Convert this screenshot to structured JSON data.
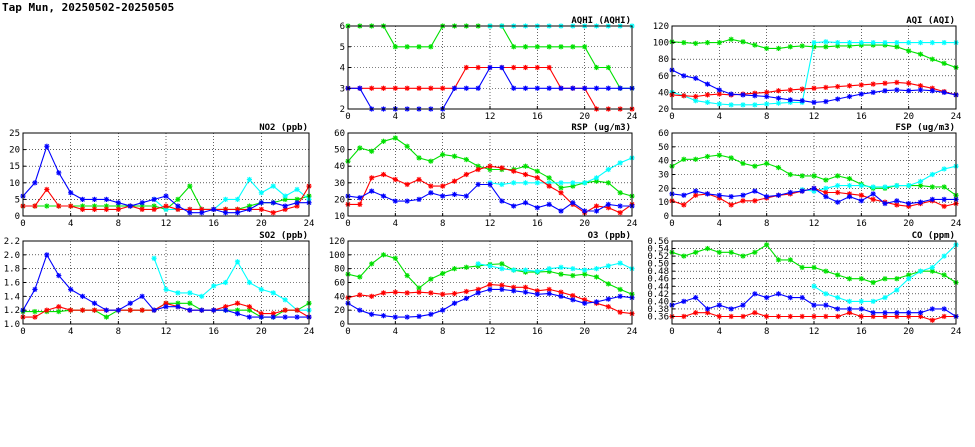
{
  "page": {
    "title": "Tap Mun, 20250502-20250505"
  },
  "chart_data": [
    {
      "type": "line",
      "title": "AQHI (AQHI)",
      "x_ticks": [
        0,
        4,
        8,
        12,
        16,
        20,
        24
      ],
      "xlim": [
        0,
        24
      ],
      "ylim": [
        2,
        6
      ],
      "y_ticks": [
        2,
        3,
        4,
        5,
        6
      ],
      "grid": true,
      "colors": [
        "#00e000",
        "#00ffff",
        "#ff0000",
        "#0000ff"
      ],
      "series": [
        {
          "values": [
            6,
            6,
            6,
            6,
            5,
            5,
            5,
            5,
            6,
            6,
            6,
            6,
            6,
            6,
            5,
            5,
            5,
            5,
            5,
            5,
            5,
            4,
            4,
            3,
            3
          ]
        },
        {
          "values": [
            null,
            null,
            null,
            null,
            null,
            null,
            null,
            null,
            null,
            null,
            null,
            null,
            6,
            6,
            6,
            6,
            6,
            6,
            6,
            6,
            6,
            6,
            6,
            6,
            6
          ]
        },
        {
          "values": [
            3,
            3,
            3,
            3,
            3,
            3,
            3,
            3,
            3,
            3,
            4,
            4,
            4,
            4,
            4,
            4,
            4,
            4,
            3,
            3,
            3,
            2,
            2,
            2,
            2
          ]
        },
        {
          "values": [
            3,
            3,
            2,
            2,
            2,
            2,
            2,
            2,
            2,
            3,
            3,
            3,
            4,
            4,
            3,
            3,
            3,
            3,
            3,
            3,
            3,
            3,
            3,
            3,
            3
          ]
        }
      ]
    },
    {
      "type": "line",
      "title": "AQI (AQI)",
      "x_ticks": [
        0,
        4,
        8,
        12,
        16,
        20,
        24
      ],
      "xlim": [
        0,
        24
      ],
      "ylim": [
        20,
        120
      ],
      "y_ticks": [
        20,
        40,
        60,
        80,
        100,
        120
      ],
      "grid": true,
      "colors": [
        "#00e000",
        "#00ffff",
        "#ff0000",
        "#0000ff"
      ],
      "series": [
        {
          "values": [
            101,
            100,
            99,
            100,
            100,
            104,
            101,
            97,
            93,
            93,
            95,
            96,
            95,
            95,
            96,
            96,
            97,
            97,
            97,
            95,
            90,
            86,
            80,
            75,
            70
          ]
        },
        {
          "values": [
            40,
            36,
            30,
            28,
            26,
            25,
            25,
            25,
            26,
            27,
            28,
            28,
            100,
            101,
            100,
            100,
            100,
            100,
            100,
            100,
            100,
            100,
            100,
            100,
            100
          ]
        },
        {
          "values": [
            37,
            36,
            35,
            37,
            38,
            37,
            38,
            39,
            40,
            42,
            43,
            44,
            45,
            46,
            47,
            48,
            49,
            50,
            51,
            52,
            51,
            48,
            45,
            41,
            37
          ]
        },
        {
          "values": [
            67,
            60,
            57,
            50,
            43,
            38,
            37,
            36,
            35,
            33,
            31,
            30,
            28,
            29,
            32,
            35,
            38,
            40,
            42,
            43,
            42,
            43,
            42,
            40,
            37
          ]
        }
      ]
    },
    {
      "type": "line",
      "title": "NO2 (ppb)",
      "x_ticks": [
        0,
        4,
        8,
        12,
        16,
        20,
        24
      ],
      "xlim": [
        0,
        24
      ],
      "ylim": [
        0,
        25
      ],
      "y_ticks": [
        0,
        5,
        10,
        15,
        20,
        25
      ],
      "grid": true,
      "colors": [
        "#00e000",
        "#00ffff",
        "#ff0000",
        "#0000ff"
      ],
      "series": [
        {
          "values": [
            3,
            3,
            3,
            3,
            3,
            3,
            3,
            3,
            3,
            3,
            3,
            3,
            2,
            5,
            9,
            2,
            2,
            2,
            2,
            3,
            4,
            4,
            5,
            5,
            6
          ]
        },
        {
          "values": [
            null,
            null,
            null,
            null,
            null,
            null,
            null,
            null,
            null,
            null,
            null,
            5,
            2,
            2,
            2,
            2,
            2,
            5,
            5,
            11,
            7,
            9,
            6,
            8,
            5
          ]
        },
        {
          "values": [
            3,
            3,
            8,
            3,
            3,
            2,
            2,
            2,
            2,
            3,
            2,
            2,
            3,
            2,
            2,
            2,
            2,
            2,
            2,
            2,
            2,
            1,
            2,
            3,
            9
          ]
        },
        {
          "values": [
            6,
            10,
            21,
            13,
            7,
            5,
            5,
            5,
            4,
            3,
            4,
            5,
            6,
            3,
            1,
            1,
            2,
            1,
            1,
            2,
            4,
            4,
            3,
            4,
            4
          ]
        }
      ]
    },
    {
      "type": "line",
      "title": "RSP (ug/m3)",
      "x_ticks": [
        0,
        4,
        8,
        12,
        16,
        20,
        24
      ],
      "xlim": [
        0,
        24
      ],
      "ylim": [
        10,
        60
      ],
      "y_ticks": [
        10,
        20,
        30,
        40,
        50,
        60
      ],
      "grid": true,
      "colors": [
        "#00e000",
        "#00ffff",
        "#ff0000",
        "#0000ff"
      ],
      "series": [
        {
          "values": [
            43,
            51,
            49,
            55,
            57,
            52,
            45,
            43,
            47,
            46,
            44,
            40,
            38,
            38,
            38,
            40,
            37,
            33,
            27,
            28,
            30,
            31,
            30,
            24,
            22
          ]
        },
        {
          "values": [
            null,
            null,
            null,
            null,
            null,
            null,
            null,
            null,
            null,
            null,
            null,
            null,
            30,
            29,
            30,
            30,
            30,
            30,
            30,
            30,
            30,
            33,
            38,
            42,
            45
          ]
        },
        {
          "values": [
            17,
            17,
            33,
            35,
            32,
            29,
            32,
            28,
            28,
            31,
            35,
            38,
            40,
            39,
            37,
            35,
            33,
            28,
            24,
            17,
            12,
            16,
            15,
            12,
            17
          ]
        },
        {
          "values": [
            22,
            21,
            25,
            22,
            19,
            19,
            20,
            24,
            22,
            23,
            22,
            29,
            29,
            19,
            16,
            18,
            15,
            17,
            13,
            18,
            13,
            13,
            17,
            16,
            16
          ]
        }
      ]
    },
    {
      "type": "line",
      "title": "FSP (ug/m3)",
      "x_ticks": [
        0,
        4,
        8,
        12,
        16,
        20,
        24
      ],
      "xlim": [
        0,
        24
      ],
      "ylim": [
        0,
        60
      ],
      "y_ticks": [
        0,
        10,
        20,
        30,
        40,
        50,
        60
      ],
      "grid": true,
      "colors": [
        "#00e000",
        "#00ffff",
        "#ff0000",
        "#0000ff"
      ],
      "series": [
        {
          "values": [
            36,
            41,
            41,
            43,
            44,
            42,
            38,
            36,
            38,
            35,
            30,
            29,
            29,
            26,
            29,
            27,
            23,
            20,
            20,
            22,
            22,
            22,
            21,
            21,
            15
          ]
        },
        {
          "values": [
            null,
            null,
            null,
            null,
            null,
            null,
            null,
            null,
            null,
            null,
            null,
            19,
            18,
            20,
            22,
            22,
            22,
            21,
            21,
            22,
            22,
            25,
            30,
            34,
            36
          ]
        },
        {
          "values": [
            11,
            8,
            15,
            16,
            13,
            8,
            11,
            11,
            13,
            15,
            16,
            18,
            20,
            17,
            17,
            16,
            15,
            12,
            10,
            8,
            7,
            9,
            11,
            7,
            9
          ]
        },
        {
          "values": [
            16,
            15,
            18,
            16,
            15,
            14,
            15,
            18,
            14,
            15,
            17,
            18,
            20,
            14,
            10,
            14,
            11,
            16,
            9,
            11,
            9,
            10,
            12,
            12,
            12
          ]
        }
      ]
    },
    {
      "type": "line",
      "title": "SO2 (ppb)",
      "x_ticks": [
        0,
        4,
        8,
        12,
        16,
        20,
        24
      ],
      "xlim": [
        0,
        24
      ],
      "ylim": [
        1.0,
        2.2
      ],
      "y_ticks": [
        1.0,
        1.2,
        1.4,
        1.6,
        1.8,
        2.0,
        2.2
      ],
      "grid": true,
      "colors": [
        "#00e000",
        "#00ffff",
        "#ff0000",
        "#0000ff"
      ],
      "series": [
        {
          "values": [
            1.18,
            1.18,
            1.18,
            1.18,
            1.2,
            1.2,
            1.2,
            1.1,
            1.2,
            1.2,
            1.2,
            1.2,
            1.3,
            1.3,
            1.3,
            1.2,
            1.2,
            1.2,
            1.2,
            1.2,
            1.1,
            1.1,
            1.2,
            1.2,
            1.3
          ]
        },
        {
          "values": [
            null,
            null,
            null,
            null,
            null,
            null,
            null,
            null,
            null,
            null,
            null,
            1.95,
            1.5,
            1.45,
            1.45,
            1.4,
            1.55,
            1.6,
            1.9,
            1.6,
            1.5,
            1.45,
            1.35,
            1.2,
            1.2
          ]
        },
        {
          "values": [
            1.1,
            1.1,
            1.2,
            1.25,
            1.2,
            1.2,
            1.2,
            1.2,
            1.2,
            1.2,
            1.2,
            1.2,
            1.3,
            1.25,
            1.2,
            1.2,
            1.2,
            1.25,
            1.3,
            1.25,
            1.15,
            1.15,
            1.2,
            1.2,
            1.1
          ]
        },
        {
          "values": [
            1.2,
            1.5,
            2.0,
            1.7,
            1.5,
            1.4,
            1.3,
            1.2,
            1.2,
            1.3,
            1.4,
            1.2,
            1.25,
            1.25,
            1.2,
            1.2,
            1.2,
            1.2,
            1.15,
            1.1,
            1.1,
            1.1,
            1.1,
            1.1,
            1.1
          ]
        }
      ]
    },
    {
      "type": "line",
      "title": "O3 (ppb)",
      "x_ticks": [
        0,
        4,
        8,
        12,
        16,
        20,
        24
      ],
      "xlim": [
        0,
        24
      ],
      "ylim": [
        0,
        120
      ],
      "y_ticks": [
        0,
        20,
        40,
        60,
        80,
        100,
        120
      ],
      "grid": true,
      "colors": [
        "#00e000",
        "#00ffff",
        "#ff0000",
        "#0000ff"
      ],
      "series": [
        {
          "values": [
            72,
            68,
            87,
            100,
            95,
            70,
            52,
            65,
            73,
            80,
            82,
            84,
            86,
            87,
            78,
            75,
            75,
            76,
            72,
            70,
            72,
            68,
            58,
            50,
            43
          ]
        },
        {
          "values": [
            null,
            null,
            null,
            null,
            null,
            null,
            null,
            null,
            null,
            null,
            null,
            87,
            84,
            80,
            78,
            78,
            76,
            80,
            82,
            80,
            78,
            80,
            84,
            88,
            80
          ]
        },
        {
          "values": [
            38,
            42,
            40,
            45,
            46,
            45,
            46,
            45,
            43,
            44,
            47,
            50,
            57,
            56,
            53,
            53,
            48,
            50,
            46,
            41,
            35,
            30,
            25,
            17,
            15
          ]
        },
        {
          "values": [
            30,
            20,
            14,
            12,
            10,
            10,
            11,
            14,
            20,
            30,
            37,
            45,
            50,
            50,
            48,
            46,
            43,
            44,
            40,
            35,
            30,
            32,
            36,
            40,
            38
          ]
        }
      ]
    },
    {
      "type": "line",
      "title": "CO (ppm)",
      "x_ticks": [
        0,
        4,
        8,
        12,
        16,
        20,
        24
      ],
      "xlim": [
        0,
        24
      ],
      "ylim": [
        0.34,
        0.56
      ],
      "y_ticks": [
        0.36,
        0.38,
        0.4,
        0.42,
        0.44,
        0.46,
        0.48,
        0.5,
        0.52,
        0.54,
        0.56
      ],
      "grid": true,
      "colors": [
        "#00e000",
        "#00ffff",
        "#ff0000",
        "#0000ff"
      ],
      "series": [
        {
          "values": [
            0.53,
            0.52,
            0.53,
            0.54,
            0.53,
            0.53,
            0.52,
            0.53,
            0.55,
            0.51,
            0.51,
            0.49,
            0.49,
            0.48,
            0.47,
            0.46,
            0.46,
            0.45,
            0.46,
            0.46,
            0.47,
            0.48,
            0.48,
            0.47,
            0.45
          ]
        },
        {
          "values": [
            null,
            null,
            null,
            null,
            null,
            null,
            null,
            null,
            null,
            null,
            null,
            null,
            0.44,
            0.42,
            0.41,
            0.4,
            0.4,
            0.4,
            0.41,
            0.43,
            0.46,
            0.48,
            0.49,
            0.52,
            0.55
          ]
        },
        {
          "values": [
            0.36,
            0.36,
            0.37,
            0.37,
            0.36,
            0.36,
            0.36,
            0.37,
            0.36,
            0.36,
            0.36,
            0.36,
            0.36,
            0.36,
            0.36,
            0.37,
            0.36,
            0.36,
            0.36,
            0.36,
            0.36,
            0.36,
            0.35,
            0.36,
            0.36
          ]
        },
        {
          "values": [
            0.39,
            0.4,
            0.41,
            0.38,
            0.39,
            0.38,
            0.39,
            0.42,
            0.41,
            0.42,
            0.41,
            0.41,
            0.39,
            0.39,
            0.38,
            0.38,
            0.38,
            0.37,
            0.37,
            0.37,
            0.37,
            0.37,
            0.38,
            0.38,
            0.36
          ]
        }
      ]
    }
  ]
}
